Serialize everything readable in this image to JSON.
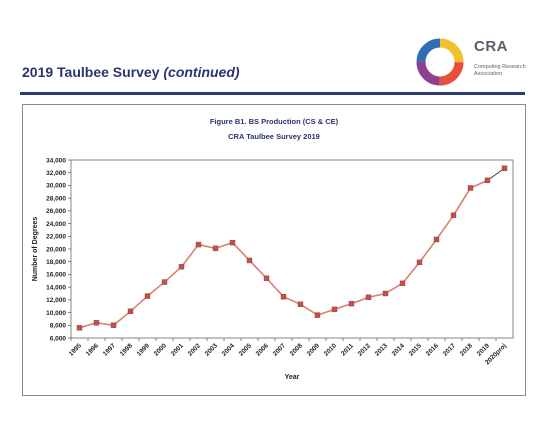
{
  "header": {
    "title_main": "2019 Taulbee Survey ",
    "title_italic": "(continued)"
  },
  "logo": {
    "name": "CRA",
    "line1": "Computing Research",
    "line2": "Association"
  },
  "colors": {
    "header_blue": "#2a3471",
    "series_line": "#d6826d",
    "marker_fill": "#c0504d",
    "projection_line": "#333333"
  },
  "chart_data": {
    "type": "line",
    "title": "Figure B1. BS Production (CS & CE)",
    "subtitle": "CRA Taulbee Survey 2019",
    "xlabel": "Year",
    "ylabel": "Number of Degrees",
    "categories": [
      "1995",
      "1996",
      "1997",
      "1998",
      "1999",
      "2000",
      "2001",
      "2002",
      "2003",
      "2004",
      "2005",
      "2006",
      "2007",
      "2008",
      "2009",
      "2010",
      "2011",
      "2012",
      "2013",
      "2014",
      "2015",
      "2016",
      "2017",
      "2018",
      "2019",
      "2020proj"
    ],
    "series": [
      {
        "values": [
          7600,
          8400,
          8000,
          10200,
          12600,
          14800,
          17200,
          20700,
          20100,
          21000,
          18200,
          15400,
          12500,
          11300,
          9600,
          10500,
          11400,
          12400,
          13000,
          14600,
          17900,
          21500,
          25300,
          29600,
          30800,
          32700
        ],
        "projected_from_index": 24
      }
    ],
    "ylim": [
      6000,
      34000
    ],
    "yticks": [
      6000,
      8000,
      10000,
      12000,
      14000,
      16000,
      18000,
      20000,
      22000,
      24000,
      26000,
      28000,
      30000,
      32000,
      34000
    ],
    "ytick_labels": [
      "6,000",
      "8,000",
      "10,000",
      "12,000",
      "14,000",
      "16,000",
      "18,000",
      "20,000",
      "22,000",
      "24,000",
      "26,000",
      "28,000",
      "30,000",
      "32,000",
      "34,000"
    ],
    "grid": false,
    "legend": "none"
  }
}
